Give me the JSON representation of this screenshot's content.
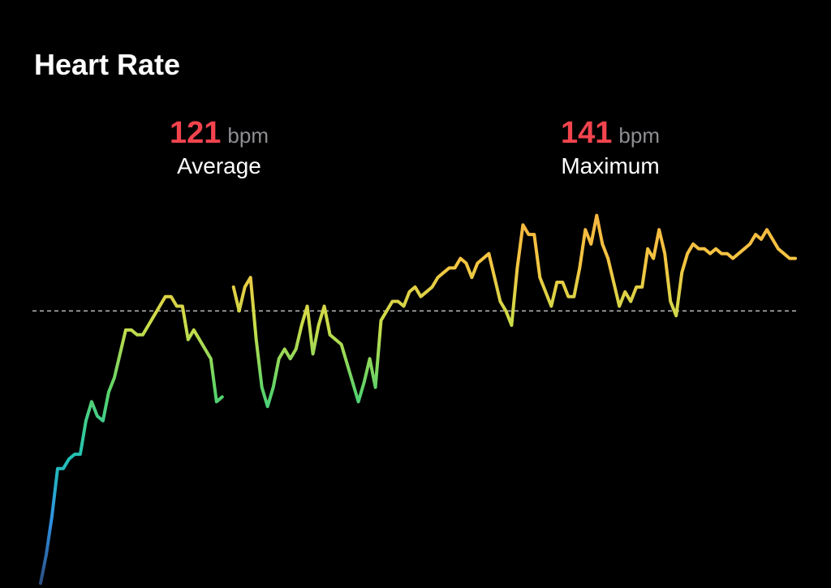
{
  "chart_data": {
    "type": "line",
    "title": "Heart Rate",
    "stats": [
      {
        "value": 121,
        "unit": "bpm",
        "label": "Average"
      },
      {
        "value": 141,
        "unit": "bpm",
        "label": "Maximum"
      }
    ],
    "stat_color": "#f2444e",
    "average_line": true,
    "ylim": [
      63,
      145
    ],
    "gradient": [
      "#2c4a7a",
      "#2f8fe0",
      "#22c2b5",
      "#5ad36a",
      "#c8dd4a",
      "#f5c542",
      "#f5b040"
    ],
    "values": [
      64,
      70,
      78,
      88,
      88,
      90,
      91,
      91,
      98,
      102,
      99,
      98,
      104,
      107,
      112,
      117,
      117,
      116,
      116,
      118,
      120,
      122,
      124,
      124,
      122,
      122,
      115,
      117,
      115,
      113,
      111,
      102,
      103,
      null,
      126,
      121,
      126,
      128,
      115,
      105,
      101,
      105,
      111,
      113,
      111,
      113,
      118,
      122,
      112,
      118,
      122,
      116,
      115,
      114,
      110,
      106,
      102,
      106,
      111,
      105,
      119,
      121,
      123,
      123,
      122,
      125,
      126,
      124,
      125,
      126,
      128,
      129,
      130,
      130,
      132,
      131,
      128,
      131,
      132,
      133,
      128,
      123,
      121,
      118,
      130,
      139,
      137,
      137,
      128,
      125,
      122,
      127,
      127,
      124,
      124,
      130,
      138,
      135,
      141,
      135,
      132,
      127,
      122,
      125,
      123,
      126,
      126,
      134,
      132,
      138,
      133,
      123,
      120,
      129,
      133,
      135,
      134,
      134,
      133,
      134,
      133,
      133,
      132,
      133,
      134,
      135,
      137,
      136,
      138,
      136,
      134,
      133,
      132,
      132
    ]
  }
}
